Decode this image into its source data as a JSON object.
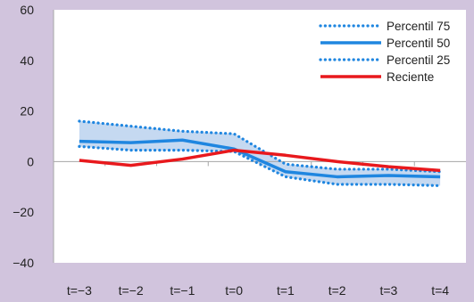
{
  "chart_data": {
    "type": "line",
    "title": "",
    "xlabel": "",
    "ylabel": "",
    "categories": [
      "t=−3",
      "t=−2",
      "t=−1",
      "t=0",
      "t=1",
      "t=2",
      "t=3",
      "t=4"
    ],
    "ylim": [
      -40,
      60
    ],
    "yticks": [
      {
        "value": -40,
        "label": "−40"
      },
      {
        "value": -20,
        "label": "−20"
      },
      {
        "value": 0,
        "label": "0"
      },
      {
        "value": 20,
        "label": "20"
      },
      {
        "value": 40,
        "label": "40"
      },
      {
        "value": 60,
        "label": "60"
      }
    ],
    "grid": false,
    "legend_position": "top-right",
    "band": {
      "between": [
        "Percentil 75",
        "Percentil 25"
      ],
      "color": "#c5d9f1"
    },
    "series": [
      {
        "name": "Percentil 75",
        "style": "dotted",
        "color": "#1f86e0",
        "values": [
          16,
          14,
          12,
          11,
          -1,
          -3,
          -3,
          -4
        ]
      },
      {
        "name": "Percentil 50",
        "style": "solid",
        "color": "#1f86e0",
        "values": [
          8,
          7.5,
          8.5,
          5,
          -4,
          -6,
          -5.5,
          -6
        ]
      },
      {
        "name": "Percentil 25",
        "style": "dotted",
        "color": "#1f86e0",
        "values": [
          6,
          4.5,
          4.5,
          4,
          -6,
          -9,
          -9,
          -9.5
        ]
      },
      {
        "name": "Reciente",
        "style": "solid",
        "color": "#e8191d",
        "values": [
          0.5,
          -1.5,
          1,
          4.5,
          2.5,
          0,
          -2,
          -3.5
        ]
      }
    ]
  }
}
